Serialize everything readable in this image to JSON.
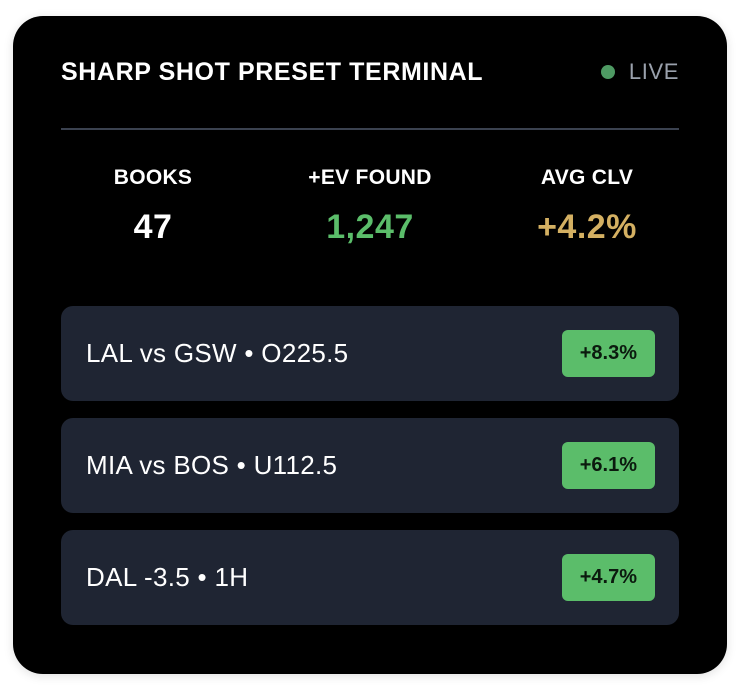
{
  "header": {
    "title": "SHARP SHOT PRESET TERMINAL",
    "status_label": "LIVE",
    "status_color": "#4e9a63"
  },
  "stats": [
    {
      "label": "BOOKS",
      "value": "47",
      "color": "#ffffff"
    },
    {
      "label": "+EV FOUND",
      "value": "1,247",
      "color": "#5bbd6a"
    },
    {
      "label": "AVG CLV",
      "value": "+4.2%",
      "color": "#d4b062"
    }
  ],
  "bets": [
    {
      "label": "LAL vs GSW • O225.5",
      "edge": "+8.3%"
    },
    {
      "label": "MIA vs BOS • U112.5",
      "edge": "+6.1%"
    },
    {
      "label": "DAL -3.5 • 1H",
      "edge": "+4.7%"
    }
  ],
  "colors": {
    "card_bg": "#000000",
    "row_bg": "#1f2533",
    "badge_bg": "#5bbd6a"
  }
}
